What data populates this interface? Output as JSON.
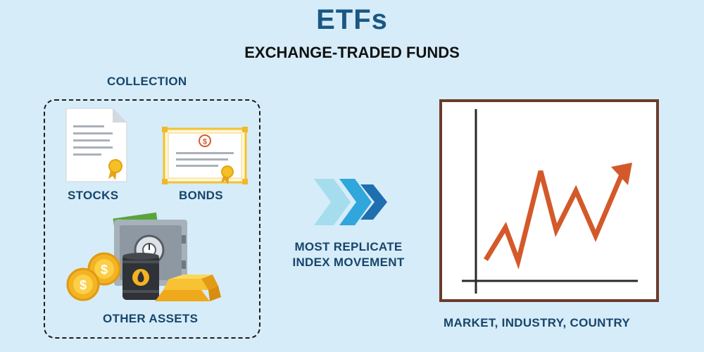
{
  "header": {
    "title": "ETFs",
    "subtitle": "EXCHANGE-TRADED FUNDS"
  },
  "collection": {
    "label": "COLLECTION",
    "items": [
      {
        "label": "STOCKS",
        "icon": "stock-certificate-icon"
      },
      {
        "label": "BONDS",
        "icon": "bond-certificate-icon"
      },
      {
        "label": "OTHER ASSETS",
        "icon": "other-assets-icon"
      }
    ]
  },
  "flow": {
    "arrow_icon": "triple-chevron-arrow-icon",
    "line1": "MOST REPLICATE",
    "line2": "INDEX MOVEMENT"
  },
  "chart_panel": {
    "label": "MARKET, INDUSTRY, COUNTRY",
    "icon": "trend-chart-icon"
  },
  "colors": {
    "background": "#d6ecf8",
    "title": "#1a5784",
    "label": "#17456c",
    "trend_line": "#d4592a",
    "chart_frame": "#6b3b2a",
    "gold": "#f5b82e"
  }
}
